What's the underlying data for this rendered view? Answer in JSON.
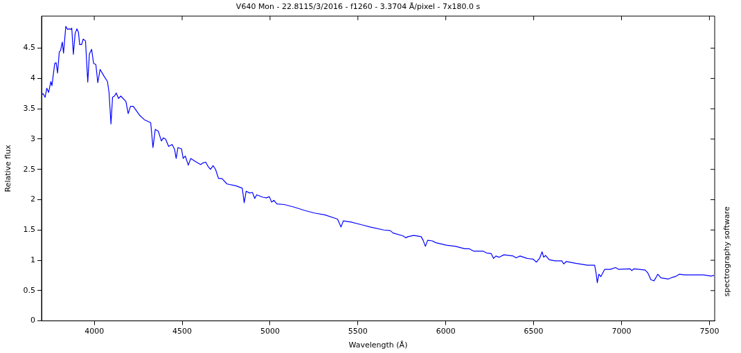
{
  "chart_data": {
    "type": "line",
    "title": "V640 Mon - 22.8115/3/2016 - f1260 - 3.3704 Å/pixel - 7x180.0 s",
    "xlabel": "Wavelength (Å)",
    "ylabel": "Relative flux",
    "annotations": [
      "spectrography software"
    ],
    "xlim": [
      3700,
      7530
    ],
    "ylim": [
      0,
      5.03
    ],
    "xticks": [
      4000,
      4500,
      5000,
      5500,
      6000,
      6500,
      7000,
      7500
    ],
    "yticks": [
      0,
      0.5,
      1,
      1.5,
      2,
      2.5,
      3,
      3.5,
      4,
      4.5
    ],
    "grid": false,
    "legend": false,
    "marker": "none",
    "line_style": "solid",
    "series": [
      {
        "color": "#0000ff",
        "x": [
          3700,
          3709,
          3720,
          3730,
          3740,
          3753,
          3759,
          3775,
          3783,
          3791,
          3801,
          3808,
          3818,
          3825,
          3838,
          3848,
          3858,
          3867,
          3872,
          3881,
          3891,
          3901,
          3910,
          3917,
          3928,
          3937,
          3950,
          3963,
          3972,
          3985,
          3996,
          4009,
          4020,
          4033,
          4055,
          4075,
          4084,
          4095,
          4104,
          4115,
          4125,
          4138,
          4151,
          4180,
          4193,
          4206,
          4222,
          4259,
          4285,
          4321,
          4334,
          4347,
          4364,
          4382,
          4393,
          4406,
          4423,
          4443,
          4457,
          4466,
          4476,
          4496,
          4506,
          4518,
          4535,
          4549,
          4575,
          4605,
          4621,
          4634,
          4647,
          4661,
          4676,
          4690,
          4707,
          4726,
          4755,
          4805,
          4842,
          4853,
          4864,
          4884,
          4900,
          4913,
          4924,
          4960,
          4979,
          4996,
          5009,
          5022,
          5039,
          5081,
          5134,
          5200,
          5252,
          5311,
          5384,
          5404,
          5417,
          5463,
          5529,
          5568,
          5647,
          5684,
          5700,
          5759,
          5772,
          5785,
          5818,
          5860,
          5871,
          5884,
          5897,
          5923,
          5943,
          6002,
          6055,
          6108,
          6134,
          6160,
          6213,
          6233,
          6259,
          6272,
          6285,
          6302,
          6331,
          6384,
          6400,
          6423,
          6463,
          6496,
          6516,
          6535,
          6548,
          6557,
          6568,
          6588,
          6621,
          6660,
          6671,
          6686,
          6739,
          6805,
          6847,
          6855,
          6862,
          6871,
          6882,
          6904,
          6937,
          6966,
          6983,
          7049,
          7058,
          7071,
          7134,
          7150,
          7167,
          7184,
          7197,
          7206,
          7224,
          7246,
          7266,
          7290,
          7305,
          7329,
          7358,
          7410,
          7463,
          7509,
          7526
        ],
        "values": [
          3.73,
          3.75,
          3.69,
          3.84,
          3.77,
          3.95,
          3.88,
          4.25,
          4.26,
          4.09,
          4.44,
          4.46,
          4.6,
          4.42,
          4.86,
          4.81,
          4.82,
          4.81,
          4.83,
          4.4,
          4.74,
          4.82,
          4.76,
          4.56,
          4.56,
          4.65,
          4.62,
          3.94,
          4.4,
          4.48,
          4.25,
          4.23,
          3.93,
          4.15,
          4.04,
          3.95,
          3.77,
          3.25,
          3.69,
          3.71,
          3.76,
          3.67,
          3.71,
          3.62,
          3.42,
          3.54,
          3.54,
          3.39,
          3.32,
          3.27,
          2.86,
          3.16,
          3.13,
          2.97,
          3.02,
          3,
          2.88,
          2.91,
          2.83,
          2.68,
          2.86,
          2.84,
          2.68,
          2.72,
          2.57,
          2.68,
          2.63,
          2.58,
          2.61,
          2.62,
          2.55,
          2.5,
          2.56,
          2.5,
          2.35,
          2.35,
          2.26,
          2.23,
          2.19,
          1.95,
          2.14,
          2.11,
          2.12,
          2.02,
          2.08,
          2.04,
          2.03,
          2.05,
          1.96,
          1.99,
          1.93,
          1.92,
          1.88,
          1.82,
          1.78,
          1.75,
          1.68,
          1.55,
          1.65,
          1.63,
          1.58,
          1.55,
          1.5,
          1.49,
          1.45,
          1.4,
          1.37,
          1.39,
          1.41,
          1.39,
          1.33,
          1.23,
          1.33,
          1.32,
          1.29,
          1.25,
          1.23,
          1.19,
          1.19,
          1.15,
          1.15,
          1.12,
          1.11,
          1.03,
          1.07,
          1.05,
          1.09,
          1.07,
          1.04,
          1.07,
          1.03,
          1.02,
          0.97,
          1.04,
          1.14,
          1.05,
          1.08,
          1.01,
          0.99,
          0.99,
          0.94,
          0.98,
          0.95,
          0.92,
          0.92,
          0.79,
          0.63,
          0.77,
          0.73,
          0.85,
          0.85,
          0.88,
          0.85,
          0.86,
          0.83,
          0.86,
          0.84,
          0.79,
          0.68,
          0.66,
          0.72,
          0.77,
          0.71,
          0.7,
          0.69,
          0.72,
          0.73,
          0.77,
          0.76,
          0.76,
          0.76,
          0.74,
          0.75
        ]
      }
    ]
  }
}
